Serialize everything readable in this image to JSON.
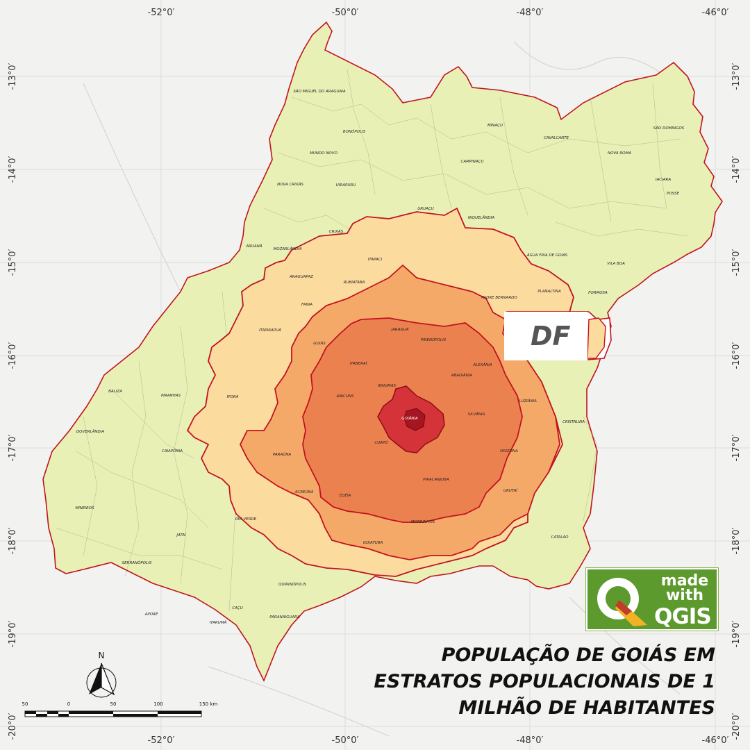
{
  "map": {
    "longitude_labels": [
      "-52°0′",
      "-50°0′",
      "-48°0′",
      "-46°0′"
    ],
    "latitude_labels": [
      "-13°0′",
      "-14°0′",
      "-15°0′",
      "-16°0′",
      "-17°0′",
      "-18°0′",
      "-19°0′",
      "-20°0′"
    ],
    "df_label": "DF",
    "north_label": "N",
    "scale_labels": [
      "50",
      "0",
      "50",
      "100",
      "150 km"
    ],
    "colors": {
      "background": "#f2f2f0",
      "stratum_outer": "#e8f0b6",
      "stratum_2": "#fcdb9e",
      "stratum_3": "#f5a969",
      "stratum_4": "#ec8150",
      "stratum_core": "#d5333a",
      "boundary": "#c1121f"
    },
    "municipalities": [
      "SÃO MIGUEL DO ARAGUAIA",
      "BONÓPOLIS",
      "MUNDO NOVO",
      "NOVA CRIXÁS",
      "UIRAPURU",
      "CAMPINAÇU",
      "MINAÇU",
      "CAVALCANTE",
      "SÃO DOMINGOS",
      "NOVA ROMA",
      "IACIARA",
      "POSSE",
      "URUAÇU",
      "NIQUELÂNDIA",
      "CRIXÁS",
      "ARUANÃ",
      "MOZARLÂNDIA",
      "ITAPACI",
      "RUBIATABA",
      "ARAGUAPAZ",
      "ÁGUA FRIA DE GOIÁS",
      "VILA BOA",
      "PLANALTINA",
      "FORMOSA",
      "PADRE BERNARDO",
      "FAINA",
      "ITAPIRAPUÃ",
      "GOIÁS",
      "JARAGUÁ",
      "PIRENÓPOLIS",
      "ITABERAÍ",
      "ALEXÂNIA",
      "ABADIÂNIA",
      "INHUMAS",
      "ANICUNS",
      "LUZIÂNIA",
      "GOIÂNIA",
      "SILVÂNIA",
      "IPORÁ",
      "BALIZA",
      "PIRANHAS",
      "CRISTALINA",
      "DOVERLÂNDIA",
      "CAIAPÔNIA",
      "PARAÚNA",
      "CUAPÓ",
      "ORIZONA",
      "PIRACANJUBA",
      "ACREÚNA",
      "EDÉIA",
      "URUTAÍ",
      "MINEIROS",
      "RIO VERDE",
      "MORRINHOS",
      "JATAÍ",
      "CATALÃO",
      "GOIATUBA",
      "SERRANÓPOLIS",
      "QUIRINÓPOLIS",
      "CAÇU",
      "APORÉ",
      "ITARUMÃ",
      "PARANAIGUARA"
    ]
  },
  "logo": {
    "line1": "made",
    "line2": "with",
    "line3": "QGIS"
  },
  "title": {
    "line1": "POPULAÇÃO DE GOIÁS EM",
    "line2": "ESTRATOS POPULACIONAIS DE 1",
    "line3": "MILHÃO DE HABITANTES"
  }
}
